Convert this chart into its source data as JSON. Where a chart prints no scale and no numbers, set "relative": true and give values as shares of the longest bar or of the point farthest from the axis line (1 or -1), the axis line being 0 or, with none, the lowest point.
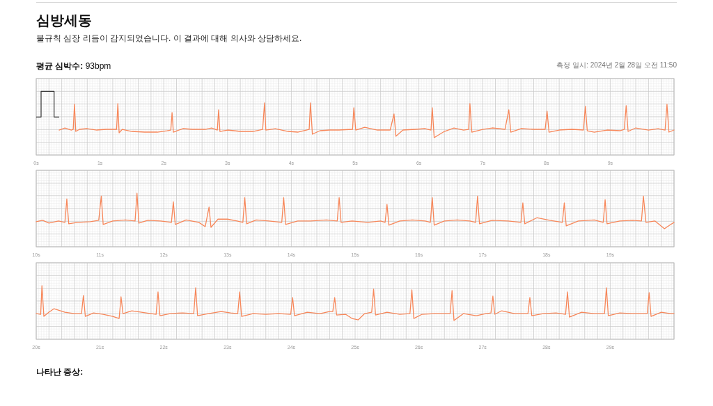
{
  "chart_data": [
    {
      "type": "line",
      "title": "심방세동",
      "subtitle": "불규칙 심장 리듬이 감지되었습니다. 이 결과에 대해 의사와 상담하세요.",
      "annotations": [
        "평균 심박수: 93bpm",
        "측정 일시: 2024년 2월 28일 오전 11:50"
      ],
      "relative": true,
      "grid": true,
      "xlim": [
        0,
        10
      ],
      "xticks": [
        {
          "value": 0,
          "label": "0s"
        },
        {
          "value": 1,
          "label": "1s"
        },
        {
          "value": 2,
          "label": "2s"
        },
        {
          "value": 3,
          "label": "3s"
        },
        {
          "value": 4,
          "label": "4s"
        },
        {
          "value": 5,
          "label": "5s"
        },
        {
          "value": 6,
          "label": "6s"
        },
        {
          "value": 7,
          "label": "7s"
        },
        {
          "value": 8,
          "label": "8s"
        },
        {
          "value": 9,
          "label": "9s"
        }
      ],
      "x": [
        0.36,
        0.45,
        0.55,
        0.58,
        0.6,
        0.62,
        0.68,
        0.8,
        0.95,
        1.1,
        1.2,
        1.26,
        1.28,
        1.3,
        1.35,
        1.5,
        1.7,
        1.9,
        2.05,
        2.11,
        2.13,
        2.15,
        2.3,
        2.45,
        2.65,
        2.75,
        2.84,
        2.86,
        2.88,
        3.0,
        3.2,
        3.4,
        3.55,
        3.58,
        3.6,
        3.75,
        3.95,
        4.1,
        4.28,
        4.3,
        4.33,
        4.45,
        4.6,
        4.75,
        4.96,
        4.98,
        5.01,
        5.15,
        5.35,
        5.55,
        5.61,
        5.64,
        5.75,
        5.95,
        6.1,
        6.19,
        6.21,
        6.24,
        6.4,
        6.55,
        6.7,
        6.78,
        6.8,
        6.83,
        7.0,
        7.15,
        7.35,
        7.41,
        7.44,
        7.6,
        7.8,
        7.98,
        8.01,
        8.04,
        8.2,
        8.4,
        8.58,
        8.61,
        8.64,
        8.75,
        8.95,
        9.15,
        9.22,
        9.25,
        9.28,
        9.4,
        9.6,
        9.75,
        9.86,
        9.89,
        9.92,
        10.0
      ],
      "series": [
        {
          "color": "#f7875a",
          "values": [
            0.22,
            0.28,
            0.22,
            0.24,
            0.96,
            0.18,
            0.24,
            0.26,
            0.22,
            0.24,
            0.24,
            0.24,
            0.98,
            0.14,
            0.24,
            0.18,
            0.16,
            0.16,
            0.2,
            0.22,
            0.72,
            0.16,
            0.26,
            0.24,
            0.24,
            0.28,
            0.22,
            0.8,
            0.18,
            0.22,
            0.18,
            0.18,
            0.24,
            1.0,
            0.22,
            0.26,
            0.18,
            0.16,
            0.24,
            1.0,
            0.1,
            0.2,
            0.22,
            0.22,
            0.24,
            0.86,
            0.22,
            0.3,
            0.22,
            0.22,
            0.68,
            0.04,
            0.22,
            0.24,
            0.26,
            0.22,
            0.86,
            0.0,
            0.18,
            0.28,
            0.22,
            0.24,
            0.98,
            0.16,
            0.24,
            0.28,
            0.24,
            0.8,
            0.16,
            0.26,
            0.24,
            0.24,
            0.76,
            0.16,
            0.22,
            0.24,
            0.22,
            0.9,
            0.2,
            0.16,
            0.22,
            0.2,
            0.24,
            0.92,
            0.18,
            0.28,
            0.22,
            0.26,
            0.22,
            0.96,
            0.16,
            0.22
          ]
        }
      ]
    },
    {
      "type": "line",
      "relative": true,
      "grid": true,
      "xlim": [
        10,
        20
      ],
      "xticks": [
        {
          "value": 10,
          "label": "10s"
        },
        {
          "value": 11,
          "label": "11s"
        },
        {
          "value": 12,
          "label": "12s"
        },
        {
          "value": 13,
          "label": "13s"
        },
        {
          "value": 14,
          "label": "14s"
        },
        {
          "value": 15,
          "label": "15s"
        },
        {
          "value": 16,
          "label": "16s"
        },
        {
          "value": 17,
          "label": "17s"
        },
        {
          "value": 18,
          "label": "18s"
        },
        {
          "value": 19,
          "label": "19s"
        }
      ],
      "x": [
        10.0,
        10.1,
        10.2,
        10.35,
        10.45,
        10.48,
        10.51,
        10.65,
        10.85,
        10.98,
        11.02,
        11.05,
        11.2,
        11.4,
        11.55,
        11.58,
        11.61,
        11.75,
        11.95,
        12.12,
        12.15,
        12.18,
        12.35,
        12.55,
        12.65,
        12.71,
        12.74,
        12.85,
        13.0,
        13.15,
        13.24,
        13.27,
        13.3,
        13.45,
        13.65,
        13.85,
        13.88,
        13.91,
        14.1,
        14.3,
        14.55,
        14.72,
        14.75,
        14.78,
        14.95,
        15.2,
        15.4,
        15.47,
        15.5,
        15.53,
        15.7,
        15.9,
        16.1,
        16.18,
        16.21,
        16.24,
        16.4,
        16.6,
        16.8,
        16.89,
        16.92,
        16.95,
        17.15,
        17.4,
        17.6,
        17.63,
        17.66,
        17.85,
        18.05,
        18.25,
        18.28,
        18.31,
        18.5,
        18.75,
        18.89,
        18.92,
        18.95,
        19.15,
        19.35,
        19.49,
        19.52,
        19.56,
        19.7,
        19.85,
        19.93,
        20.0
      ],
      "series": [
        {
          "color": "#f7875a",
          "values": [
            0.2,
            0.24,
            0.16,
            0.22,
            0.18,
            0.84,
            0.14,
            0.18,
            0.2,
            0.24,
            0.92,
            0.12,
            0.22,
            0.25,
            0.22,
            1.0,
            0.16,
            0.24,
            0.22,
            0.18,
            0.76,
            0.12,
            0.25,
            0.18,
            0.06,
            0.61,
            0.04,
            0.27,
            0.27,
            0.22,
            0.18,
            0.88,
            0.14,
            0.25,
            0.22,
            0.18,
            0.88,
            0.12,
            0.22,
            0.22,
            0.25,
            0.22,
            0.88,
            0.18,
            0.22,
            0.18,
            0.22,
            0.18,
            0.69,
            0.1,
            0.22,
            0.25,
            0.22,
            0.18,
            0.88,
            0.1,
            0.22,
            0.25,
            0.22,
            0.18,
            0.92,
            0.14,
            0.24,
            0.22,
            0.18,
            0.73,
            0.14,
            0.31,
            0.24,
            0.18,
            0.73,
            0.08,
            0.22,
            0.25,
            0.18,
            0.82,
            0.14,
            0.22,
            0.24,
            0.22,
            0.92,
            0.18,
            0.22,
            0.0,
            0.1,
            0.18
          ]
        }
      ]
    },
    {
      "type": "line",
      "relative": true,
      "grid": true,
      "xlim": [
        20,
        30
      ],
      "annotations": [
        "나타난 증상:"
      ],
      "xticks": [
        {
          "value": 20,
          "label": "20s"
        },
        {
          "value": 21,
          "label": "21s"
        },
        {
          "value": 22,
          "label": "22s"
        },
        {
          "value": 23,
          "label": "23s"
        },
        {
          "value": 24,
          "label": "24s"
        },
        {
          "value": 25,
          "label": "25s"
        },
        {
          "value": 26,
          "label": "26s"
        },
        {
          "value": 27,
          "label": "27s"
        },
        {
          "value": 28,
          "label": "28s"
        },
        {
          "value": 29,
          "label": "29s"
        }
      ],
      "x": [
        20.0,
        20.07,
        20.09,
        20.12,
        20.2,
        20.28,
        20.45,
        20.6,
        20.71,
        20.74,
        20.77,
        20.9,
        21.05,
        21.2,
        21.3,
        21.33,
        21.36,
        21.5,
        21.65,
        21.8,
        21.88,
        21.91,
        21.94,
        22.1,
        22.3,
        22.47,
        22.5,
        22.53,
        22.7,
        22.9,
        23.05,
        23.16,
        23.19,
        23.22,
        23.4,
        23.6,
        23.8,
        23.99,
        24.02,
        24.05,
        24.25,
        24.45,
        24.6,
        24.65,
        24.68,
        24.71,
        24.85,
        24.95,
        25.05,
        25.15,
        25.26,
        25.29,
        25.32,
        25.5,
        25.7,
        25.86,
        25.89,
        25.92,
        26.05,
        26.25,
        26.49,
        26.52,
        26.55,
        26.7,
        26.9,
        27.05,
        27.13,
        27.16,
        27.19,
        27.3,
        27.5,
        27.71,
        27.74,
        27.77,
        27.95,
        28.15,
        28.3,
        28.33,
        28.36,
        28.55,
        28.75,
        28.91,
        28.94,
        28.97,
        29.15,
        29.35,
        29.58,
        29.61,
        29.64,
        29.8,
        29.95,
        30.0
      ],
      "series": [
        {
          "color": "#f7875a",
          "values": [
            0.2,
            0.18,
            1.0,
            0.12,
            0.24,
            0.34,
            0.24,
            0.2,
            0.2,
            0.72,
            0.12,
            0.22,
            0.18,
            0.12,
            0.06,
            0.68,
            0.2,
            0.28,
            0.24,
            0.2,
            0.18,
            0.82,
            0.14,
            0.2,
            0.22,
            0.2,
            0.94,
            0.14,
            0.2,
            0.26,
            0.22,
            0.2,
            0.82,
            0.12,
            0.2,
            0.18,
            0.2,
            0.18,
            0.66,
            0.14,
            0.24,
            0.2,
            0.26,
            0.26,
            0.66,
            0.16,
            0.18,
            0.06,
            0.02,
            0.2,
            0.24,
            0.9,
            0.16,
            0.24,
            0.18,
            0.2,
            0.88,
            0.06,
            0.18,
            0.2,
            0.2,
            0.86,
            0.0,
            0.2,
            0.14,
            0.2,
            0.22,
            0.7,
            0.18,
            0.28,
            0.2,
            0.2,
            0.66,
            0.14,
            0.2,
            0.22,
            0.18,
            0.82,
            0.1,
            0.24,
            0.2,
            0.2,
            0.94,
            0.14,
            0.22,
            0.2,
            0.2,
            0.8,
            0.12,
            0.24,
            0.2,
            0.2
          ]
        }
      ]
    }
  ]
}
